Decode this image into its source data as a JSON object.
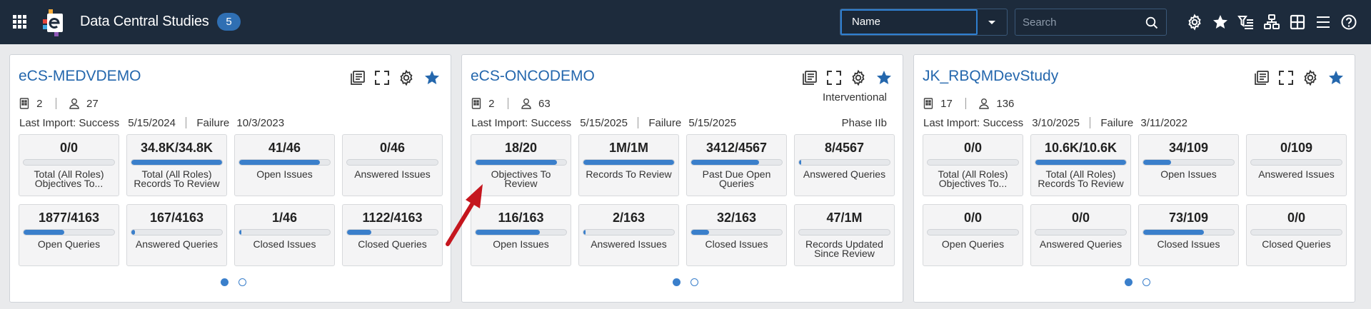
{
  "header": {
    "title": "Data Central Studies",
    "count": "5",
    "sort": {
      "value": "Name"
    },
    "search": {
      "placeholder": "Search",
      "value": ""
    },
    "icons": [
      "settings-icon",
      "favorites-icon",
      "filter-list-icon",
      "hierarchy-icon",
      "tile-view-icon",
      "list-view-icon",
      "help-icon"
    ]
  },
  "colors": {
    "header_bg": "#1d2b3c",
    "accent": "#2467ad",
    "bar_fill": "#3a7fcb",
    "arrow": "#c5161e"
  },
  "cards": [
    {
      "title": "eCS-MEDVDEMO",
      "sites": "2",
      "users": "27",
      "import": {
        "last_label": "Last Import:",
        "success_label": "Success",
        "success_date": "5/15/2024",
        "failure_label": "Failure",
        "failure_date": "10/3/2023"
      },
      "tag1": "",
      "tag2": "",
      "tiles": [
        {
          "value": "0/0",
          "label": "Total (All Roles) Objectives To...",
          "progress": 0
        },
        {
          "value": "34.8K/34.8K",
          "label": "Total (All Roles) Records To Review",
          "progress": 1.0
        },
        {
          "value": "41/46",
          "label": "Open Issues",
          "progress": 0.89
        },
        {
          "value": "0/46",
          "label": "Answered Issues",
          "progress": 0
        },
        {
          "value": "1877/4163",
          "label": "Open Queries",
          "progress": 0.45
        },
        {
          "value": "167/4163",
          "label": "Answered Queries",
          "progress": 0.04
        },
        {
          "value": "1/46",
          "label": "Closed Issues",
          "progress": 0.02
        },
        {
          "value": "1122/4163",
          "label": "Closed Queries",
          "progress": 0.27
        }
      ],
      "page": 1,
      "pages": 2
    },
    {
      "title": "eCS-ONCODEMO",
      "sites": "2",
      "users": "63",
      "import": {
        "last_label": "Last Import:",
        "success_label": "Success",
        "success_date": "5/15/2025",
        "failure_label": "Failure",
        "failure_date": "5/15/2025"
      },
      "tag1": "Interventional",
      "tag2": "Phase IIb",
      "tiles": [
        {
          "value": "18/20",
          "label": "Objectives To Review",
          "progress": 0.9
        },
        {
          "value": "1M/1M",
          "label": "Records To Review",
          "progress": 1.0
        },
        {
          "value": "3412/4567",
          "label": "Past Due Open Queries",
          "progress": 0.75
        },
        {
          "value": "8/4567",
          "label": "Answered Queries",
          "progress": 0.01
        },
        {
          "value": "116/163",
          "label": "Open Issues",
          "progress": 0.71
        },
        {
          "value": "2/163",
          "label": "Answered Issues",
          "progress": 0.01
        },
        {
          "value": "32/163",
          "label": "Closed Issues",
          "progress": 0.2
        },
        {
          "value": "47/1M",
          "label": "Records Updated Since Review",
          "progress": 0
        }
      ],
      "page": 1,
      "pages": 2
    },
    {
      "title": "JK_RBQMDevStudy",
      "sites": "17",
      "users": "136",
      "import": {
        "last_label": "Last Import:",
        "success_label": "Success",
        "success_date": "3/10/2025",
        "failure_label": "Failure",
        "failure_date": "3/11/2022"
      },
      "tag1": "",
      "tag2": "",
      "tiles": [
        {
          "value": "0/0",
          "label": "Total (All Roles) Objectives To...",
          "progress": 0
        },
        {
          "value": "10.6K/10.6K",
          "label": "Total (All Roles) Records To Review",
          "progress": 1.0
        },
        {
          "value": "34/109",
          "label": "Open Issues",
          "progress": 0.31
        },
        {
          "value": "0/109",
          "label": "Answered Issues",
          "progress": 0
        },
        {
          "value": "0/0",
          "label": "Open Queries",
          "progress": 0
        },
        {
          "value": "0/0",
          "label": "Answered Queries",
          "progress": 0
        },
        {
          "value": "73/109",
          "label": "Closed Issues",
          "progress": 0.67
        },
        {
          "value": "0/0",
          "label": "Closed Queries",
          "progress": 0
        }
      ],
      "page": 1,
      "pages": 2
    }
  ]
}
